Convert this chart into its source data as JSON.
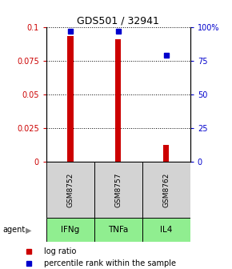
{
  "title": "GDS501 / 32941",
  "categories": [
    "GSM8752",
    "GSM8757",
    "GSM8762"
  ],
  "agents": [
    "IFNg",
    "TNFa",
    "IL4"
  ],
  "log_ratio": [
    0.093,
    0.091,
    0.012
  ],
  "percentile_rank": [
    97,
    97,
    79
  ],
  "bar_color": "#cc0000",
  "dot_color": "#0000cc",
  "ylim_left": [
    0,
    0.1
  ],
  "ylim_right": [
    0,
    100
  ],
  "yticks_left": [
    0,
    0.025,
    0.05,
    0.075,
    0.1
  ],
  "ytick_labels_left": [
    "0",
    "0.025",
    "0.05",
    "0.075",
    "0.1"
  ],
  "yticks_right": [
    0,
    25,
    50,
    75,
    100
  ],
  "ytick_labels_right": [
    "0",
    "25",
    "50",
    "75",
    "100%"
  ],
  "left_axis_color": "#cc0000",
  "right_axis_color": "#0000cc",
  "gray_box_color": "#d3d3d3",
  "green_box_color": "#90ee90",
  "legend_items": [
    "log ratio",
    "percentile rank within the sample"
  ],
  "bar_width": 0.12
}
